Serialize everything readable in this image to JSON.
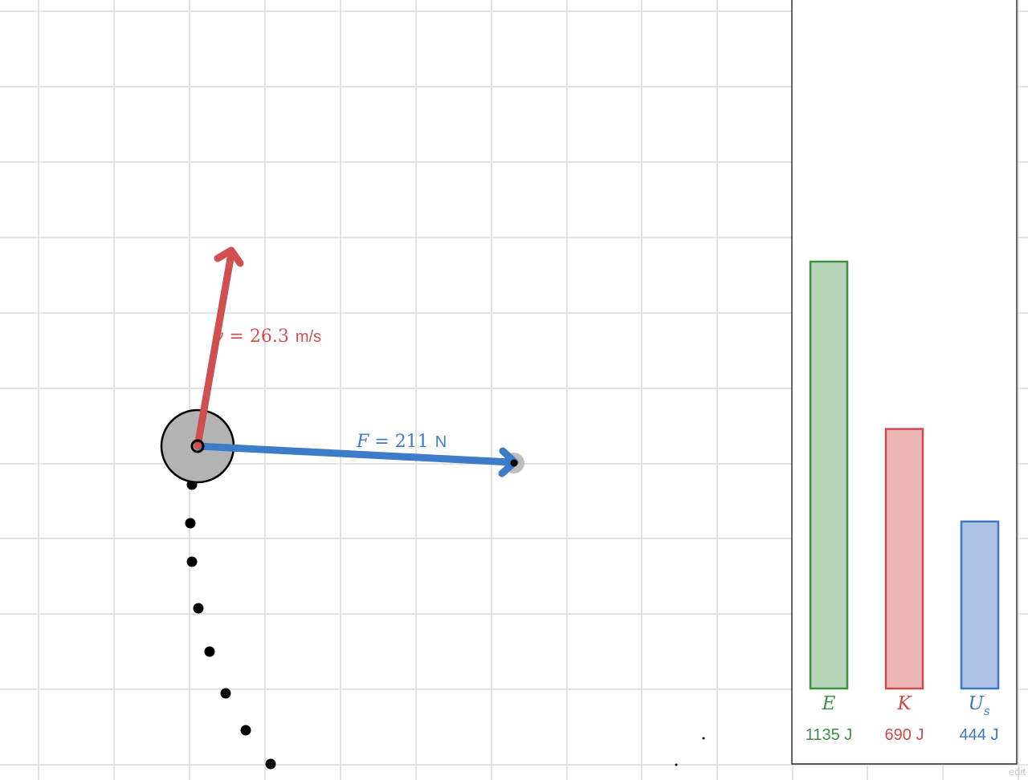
{
  "simulation": {
    "velocity": {
      "symbol": "v",
      "equals": " = ",
      "value": "26.3",
      "unit": "m/s",
      "color": "#d05050"
    },
    "force": {
      "symbol": "F",
      "equals": " = ",
      "value": "211",
      "unit": "N",
      "color": "#3d7cc9"
    },
    "mass_color": "#b3b3b3",
    "anchor_color": "#b3b3b3",
    "trail_color": "#000000",
    "grid_color": "#dcdcdc"
  },
  "energy_panel": {
    "bars": [
      {
        "symbol": "E",
        "subscript": "",
        "label": "1135 J",
        "value": 1135,
        "color": "#3f8f46",
        "fill": "#b3d4b6"
      },
      {
        "symbol": "K",
        "subscript": "",
        "label": "690 J",
        "value": 690,
        "color": "#cf4a4a",
        "fill": "#ecb6b6"
      },
      {
        "symbol": "U",
        "subscript": "s",
        "label": "444 J",
        "value": 444,
        "color": "#3d77c4",
        "fill": "#aec4e4"
      }
    ]
  },
  "footer": {
    "edit_text": "edit"
  }
}
